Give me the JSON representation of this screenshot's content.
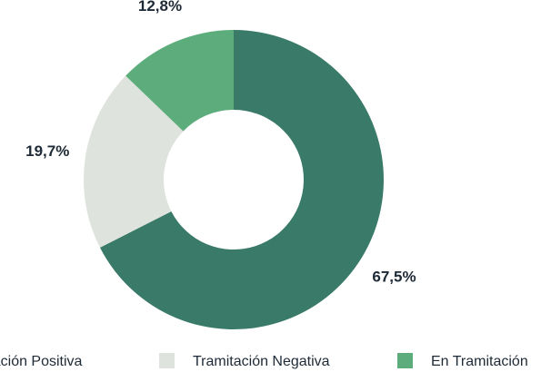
{
  "chart_data": {
    "type": "donut",
    "categories": [
      "Tramitación Positiva",
      "Tramitación Negativa",
      "En Tramitación"
    ],
    "values": [
      67.5,
      19.7,
      12.8
    ],
    "value_labels": [
      "67,5%",
      "19,7%",
      "12,8%"
    ],
    "colors": [
      "#3a7a68",
      "#dfe3dd",
      "#5cad7b"
    ],
    "legend": "bottom"
  }
}
